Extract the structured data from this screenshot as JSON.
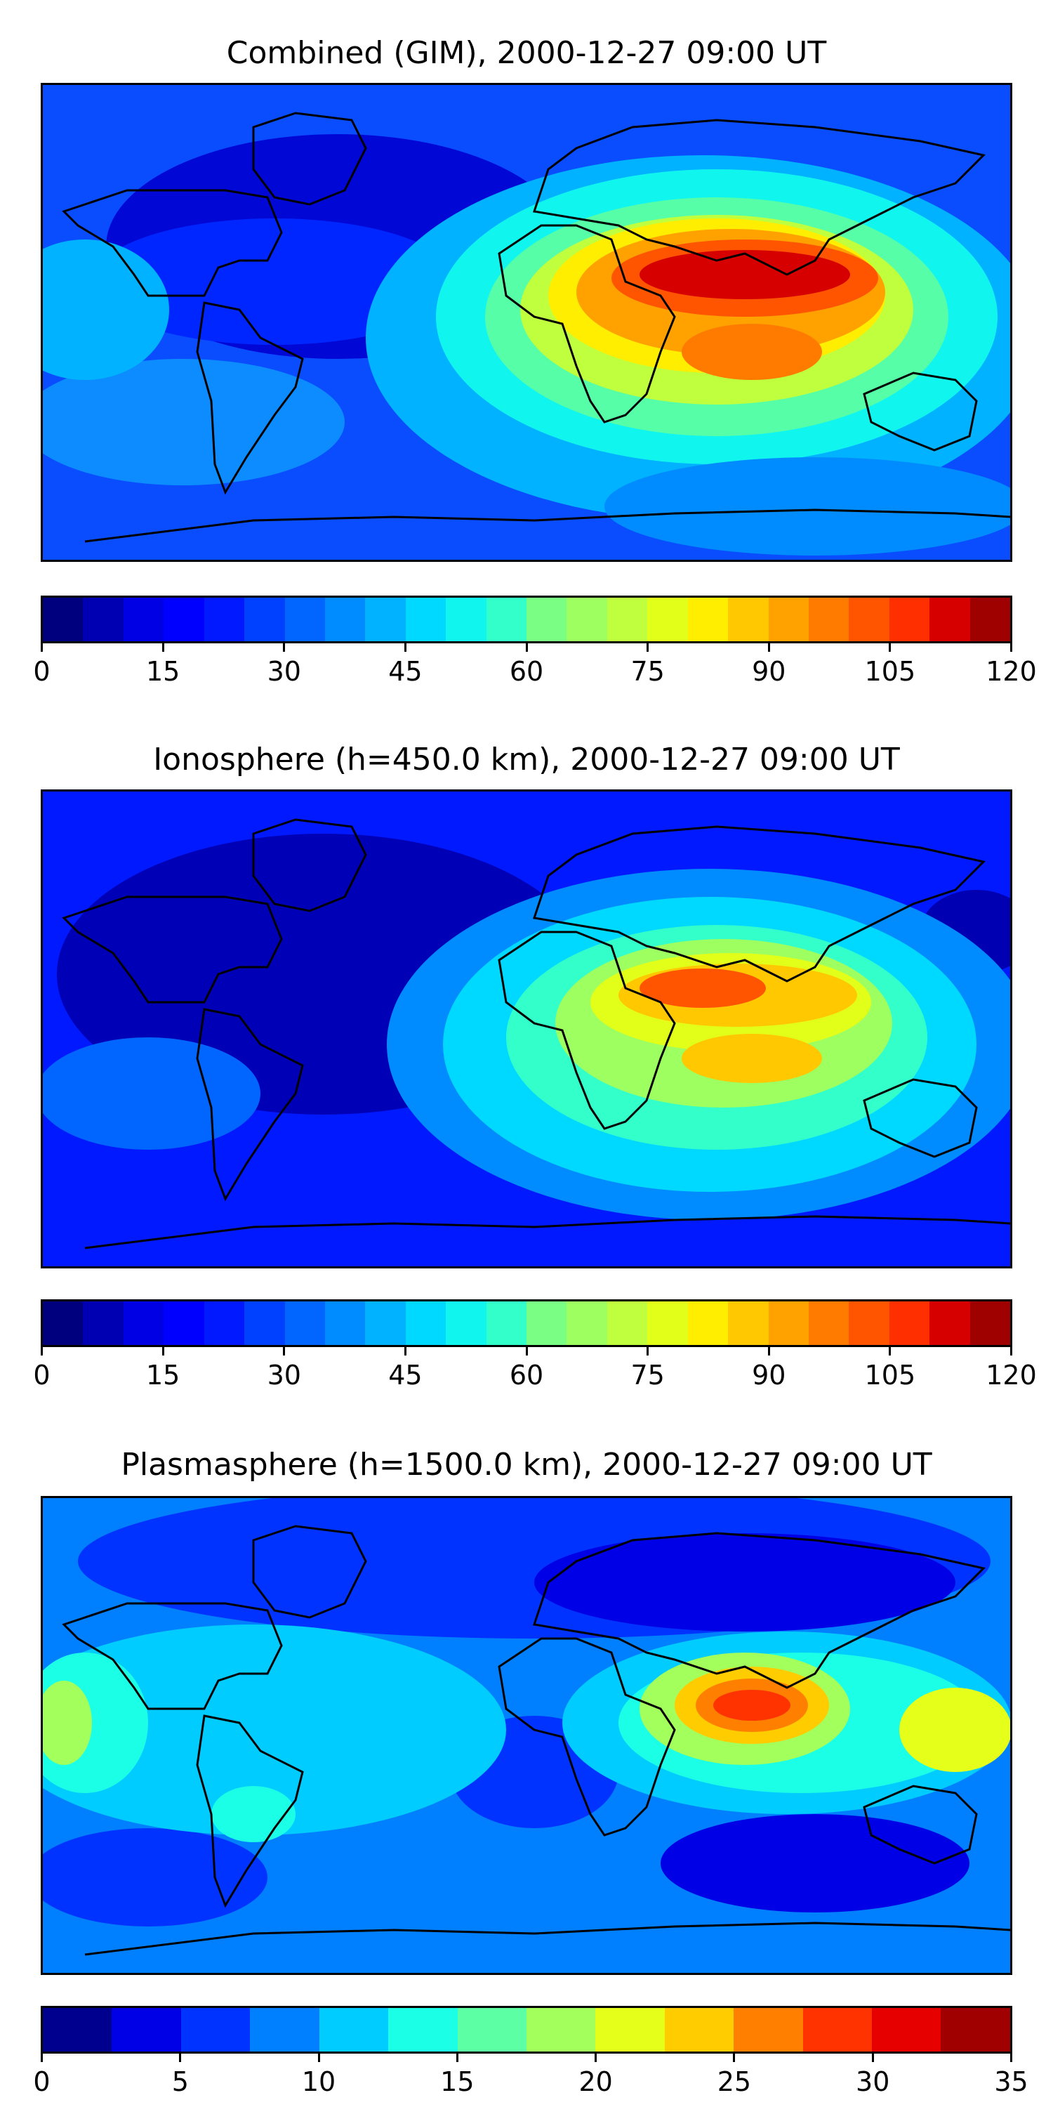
{
  "palette_jet": [
    "#000080",
    "#0000b3",
    "#0000e6",
    "#001aff",
    "#004dff",
    "#0080ff",
    "#00b3ff",
    "#10d8ec",
    "#33ffc4",
    "#60ff97",
    "#97ff60",
    "#c4ff33",
    "#eafd0f",
    "#ffc500",
    "#ff9400",
    "#ff6400",
    "#ff3300",
    "#e60000",
    "#b30000",
    "#800000"
  ],
  "panels": [
    {
      "title": "Combined (GIM), 2000-12-27 09:00 UT",
      "colorbar": {
        "min": 0,
        "max": 120,
        "levels": 24,
        "colors": [
          "#00007f",
          "#0000b2",
          "#0000e5",
          "#0000ff",
          "#0019ff",
          "#0040ff",
          "#0066ff",
          "#008cff",
          "#00b2ff",
          "#00d9ff",
          "#10f6ee",
          "#33ffcb",
          "#56ffa7",
          "#7aff84",
          "#9dff60",
          "#c0ff3d",
          "#e2ff1a",
          "#ffee00",
          "#ffc800",
          "#ffa200",
          "#ff7b00",
          "#ff5500",
          "#ff2f00",
          "#d70000",
          "#9f0000"
        ],
        "ticks": [
          "0",
          "15",
          "30",
          "45",
          "60",
          "75",
          "90",
          "105",
          "120"
        ]
      }
    },
    {
      "title": "Ionosphere  (h=450.0 km), 2000-12-27 09:00 UT",
      "colorbar": {
        "min": 0,
        "max": 120,
        "levels": 24,
        "colors": [
          "#00007f",
          "#0000b2",
          "#0000e5",
          "#0000ff",
          "#0019ff",
          "#0040ff",
          "#0066ff",
          "#008cff",
          "#00b2ff",
          "#00d9ff",
          "#10f6ee",
          "#33ffcb",
          "#56ffa7",
          "#7aff84",
          "#9dff60",
          "#c0ff3d",
          "#e2ff1a",
          "#ffee00",
          "#ffc800",
          "#ffa200",
          "#ff7b00",
          "#ff5500",
          "#ff2f00",
          "#d70000",
          "#9f0000"
        ],
        "ticks": [
          "0",
          "15",
          "30",
          "45",
          "60",
          "75",
          "90",
          "105",
          "120"
        ]
      }
    },
    {
      "title": "Plasmasphere (h=1500.0 km), 2000-12-27 09:00 UT",
      "colorbar": {
        "min": 0,
        "max": 35,
        "levels": 14,
        "colors": [
          "#00008f",
          "#0000e6",
          "#0033ff",
          "#007fff",
          "#00ccff",
          "#1affe6",
          "#5cffa3",
          "#a3ff5c",
          "#e6ff1a",
          "#ffcc00",
          "#ff8000",
          "#ff3300",
          "#e60000",
          "#a00000"
        ],
        "ticks": [
          "0",
          "5",
          "10",
          "15",
          "20",
          "25",
          "30",
          "35"
        ]
      }
    }
  ]
}
